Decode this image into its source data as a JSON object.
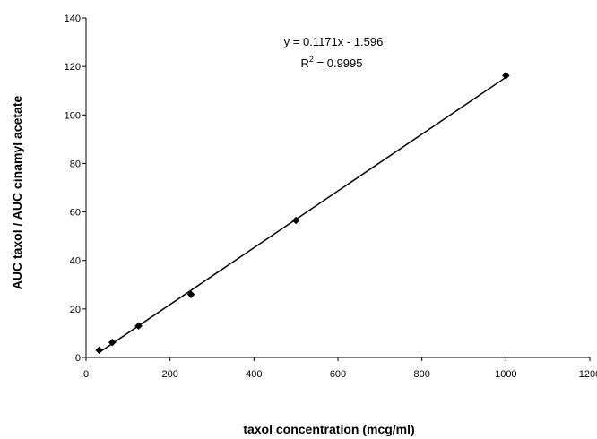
{
  "chart_data": {
    "type": "scatter",
    "title": "",
    "xlabel": "taxol concentration (mcg/ml)",
    "ylabel": "AUC taxol / AUC cinamyl acetate",
    "xlim": [
      0,
      1200
    ],
    "ylim": [
      0,
      140
    ],
    "x_ticks": [
      "0",
      "200",
      "400",
      "600",
      "800",
      "1000",
      "1200"
    ],
    "y_ticks": [
      "0",
      "20",
      "40",
      "60",
      "80",
      "100",
      "120",
      "140"
    ],
    "grid": false,
    "legend": "none",
    "series": [
      {
        "x": [
          31.25,
          62.5,
          125,
          250,
          500,
          1000
        ],
        "y": [
          3.0,
          6.2,
          13.0,
          26.0,
          56.5,
          116.2
        ],
        "marker": "diamond",
        "color": "#000000"
      }
    ],
    "trendline": {
      "slope": 0.1171,
      "intercept": -1.596,
      "x_range": [
        31.25,
        1000
      ],
      "equation_label": "y = 0.1171x - 1.596",
      "r2_prefix": "R",
      "r2_sup": "2",
      "r2_suffix": " = 0.9995"
    }
  }
}
